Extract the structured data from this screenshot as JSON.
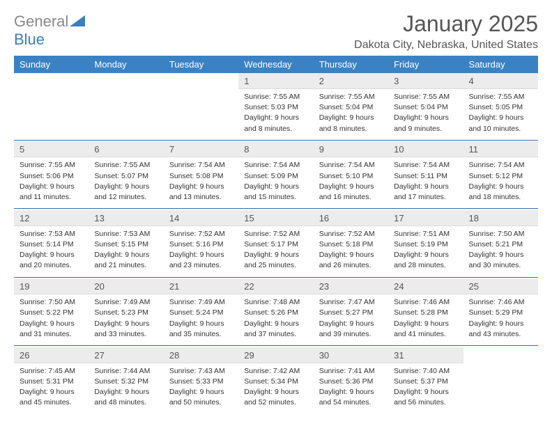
{
  "logo": {
    "text1": "General",
    "text2": "Blue"
  },
  "title": "January 2025",
  "subtitle": "Dakota City, Nebraska, United States",
  "day_names": [
    "Sunday",
    "Monday",
    "Tuesday",
    "Wednesday",
    "Thursday",
    "Friday",
    "Saturday"
  ],
  "colors": {
    "header_bg": "#3b82c4",
    "header_text": "#ffffff",
    "daynum_bg": "#ececec",
    "rule": "#2f6aa8",
    "title_color": "#555555",
    "logo_gray": "#888888",
    "logo_blue": "#3b7fbf"
  },
  "weeks": [
    [
      {
        "n": "",
        "empty": true
      },
      {
        "n": "",
        "empty": true
      },
      {
        "n": "",
        "empty": true
      },
      {
        "n": "1",
        "sr": "7:55 AM",
        "ss": "5:03 PM",
        "dl": "9 hours and 8 minutes."
      },
      {
        "n": "2",
        "sr": "7:55 AM",
        "ss": "5:04 PM",
        "dl": "9 hours and 8 minutes."
      },
      {
        "n": "3",
        "sr": "7:55 AM",
        "ss": "5:04 PM",
        "dl": "9 hours and 9 minutes."
      },
      {
        "n": "4",
        "sr": "7:55 AM",
        "ss": "5:05 PM",
        "dl": "9 hours and 10 minutes."
      }
    ],
    [
      {
        "n": "5",
        "sr": "7:55 AM",
        "ss": "5:06 PM",
        "dl": "9 hours and 11 minutes."
      },
      {
        "n": "6",
        "sr": "7:55 AM",
        "ss": "5:07 PM",
        "dl": "9 hours and 12 minutes."
      },
      {
        "n": "7",
        "sr": "7:54 AM",
        "ss": "5:08 PM",
        "dl": "9 hours and 13 minutes."
      },
      {
        "n": "8",
        "sr": "7:54 AM",
        "ss": "5:09 PM",
        "dl": "9 hours and 15 minutes."
      },
      {
        "n": "9",
        "sr": "7:54 AM",
        "ss": "5:10 PM",
        "dl": "9 hours and 16 minutes."
      },
      {
        "n": "10",
        "sr": "7:54 AM",
        "ss": "5:11 PM",
        "dl": "9 hours and 17 minutes."
      },
      {
        "n": "11",
        "sr": "7:54 AM",
        "ss": "5:12 PM",
        "dl": "9 hours and 18 minutes."
      }
    ],
    [
      {
        "n": "12",
        "sr": "7:53 AM",
        "ss": "5:14 PM",
        "dl": "9 hours and 20 minutes."
      },
      {
        "n": "13",
        "sr": "7:53 AM",
        "ss": "5:15 PM",
        "dl": "9 hours and 21 minutes."
      },
      {
        "n": "14",
        "sr": "7:52 AM",
        "ss": "5:16 PM",
        "dl": "9 hours and 23 minutes."
      },
      {
        "n": "15",
        "sr": "7:52 AM",
        "ss": "5:17 PM",
        "dl": "9 hours and 25 minutes."
      },
      {
        "n": "16",
        "sr": "7:52 AM",
        "ss": "5:18 PM",
        "dl": "9 hours and 26 minutes."
      },
      {
        "n": "17",
        "sr": "7:51 AM",
        "ss": "5:19 PM",
        "dl": "9 hours and 28 minutes."
      },
      {
        "n": "18",
        "sr": "7:50 AM",
        "ss": "5:21 PM",
        "dl": "9 hours and 30 minutes."
      }
    ],
    [
      {
        "n": "19",
        "sr": "7:50 AM",
        "ss": "5:22 PM",
        "dl": "9 hours and 31 minutes."
      },
      {
        "n": "20",
        "sr": "7:49 AM",
        "ss": "5:23 PM",
        "dl": "9 hours and 33 minutes."
      },
      {
        "n": "21",
        "sr": "7:49 AM",
        "ss": "5:24 PM",
        "dl": "9 hours and 35 minutes."
      },
      {
        "n": "22",
        "sr": "7:48 AM",
        "ss": "5:26 PM",
        "dl": "9 hours and 37 minutes."
      },
      {
        "n": "23",
        "sr": "7:47 AM",
        "ss": "5:27 PM",
        "dl": "9 hours and 39 minutes."
      },
      {
        "n": "24",
        "sr": "7:46 AM",
        "ss": "5:28 PM",
        "dl": "9 hours and 41 minutes."
      },
      {
        "n": "25",
        "sr": "7:46 AM",
        "ss": "5:29 PM",
        "dl": "9 hours and 43 minutes."
      }
    ],
    [
      {
        "n": "26",
        "sr": "7:45 AM",
        "ss": "5:31 PM",
        "dl": "9 hours and 45 minutes."
      },
      {
        "n": "27",
        "sr": "7:44 AM",
        "ss": "5:32 PM",
        "dl": "9 hours and 48 minutes."
      },
      {
        "n": "28",
        "sr": "7:43 AM",
        "ss": "5:33 PM",
        "dl": "9 hours and 50 minutes."
      },
      {
        "n": "29",
        "sr": "7:42 AM",
        "ss": "5:34 PM",
        "dl": "9 hours and 52 minutes."
      },
      {
        "n": "30",
        "sr": "7:41 AM",
        "ss": "5:36 PM",
        "dl": "9 hours and 54 minutes."
      },
      {
        "n": "31",
        "sr": "7:40 AM",
        "ss": "5:37 PM",
        "dl": "9 hours and 56 minutes."
      },
      {
        "n": "",
        "empty": true
      }
    ]
  ],
  "labels": {
    "sunrise": "Sunrise:",
    "sunset": "Sunset:",
    "daylight": "Daylight:"
  }
}
